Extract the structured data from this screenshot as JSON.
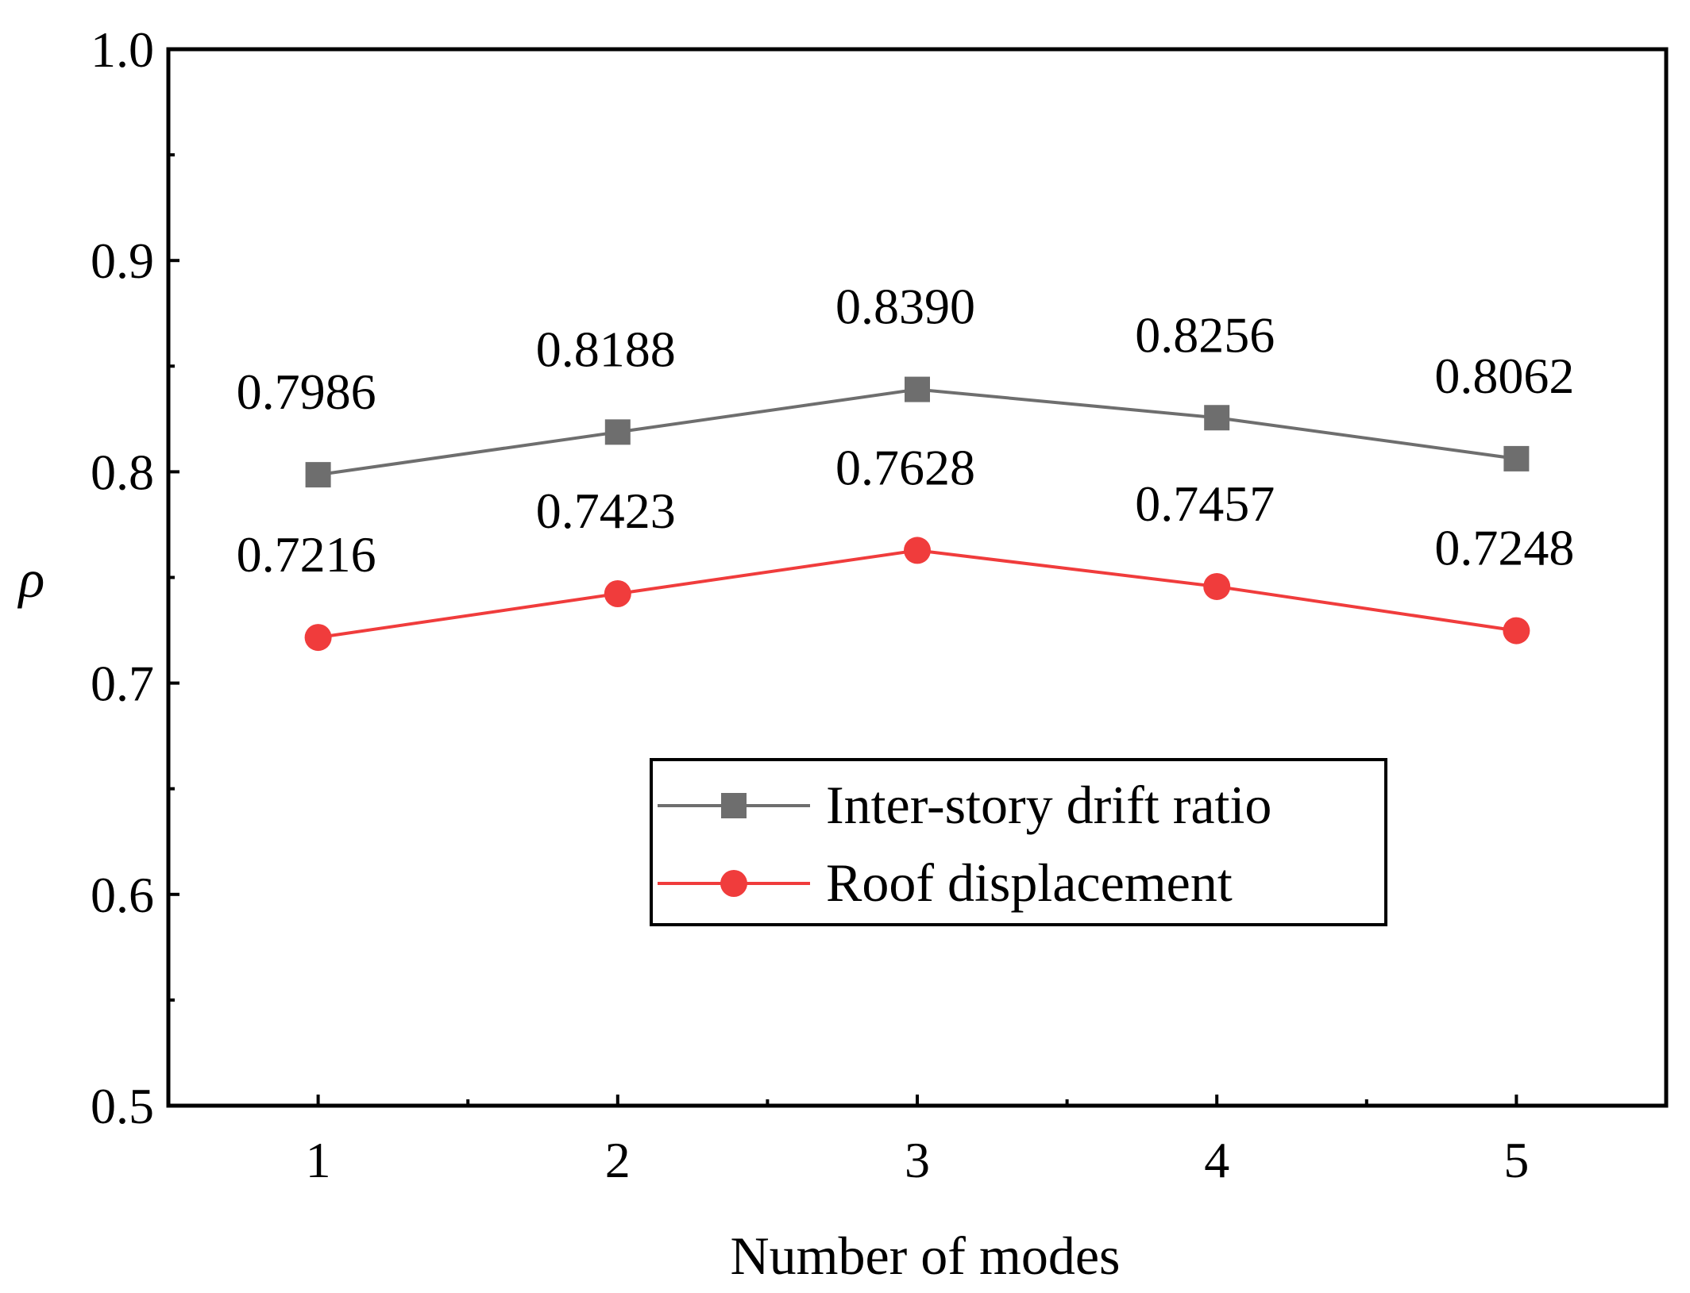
{
  "chart_data": {
    "type": "line",
    "categories": [
      "1",
      "2",
      "3",
      "4",
      "5"
    ],
    "x": [
      1,
      2,
      3,
      4,
      5
    ],
    "xlabel": "Number of modes",
    "ylabel": "ρ",
    "xlim": [
      0.5,
      5.5
    ],
    "ylim": [
      0.5,
      1.0
    ],
    "yticks": [
      "0.5",
      "0.6",
      "0.7",
      "0.8",
      "0.9",
      "1.0"
    ],
    "grid": false,
    "legend_position": "lower-right (inside)",
    "series": [
      {
        "name": "Inter-story drift ratio",
        "marker": "square",
        "color": "#6e6e6e",
        "values": [
          0.7986,
          0.8188,
          0.839,
          0.8256,
          0.8062
        ],
        "labels": [
          "0.7986",
          "0.8188",
          "0.8390",
          "0.8256",
          "0.8062"
        ]
      },
      {
        "name": "Roof displacement",
        "marker": "circle",
        "color": "#f03c3c",
        "values": [
          0.7216,
          0.7423,
          0.7628,
          0.7457,
          0.7248
        ],
        "labels": [
          "0.7216",
          "0.7423",
          "0.7628",
          "0.7457",
          "0.7248"
        ]
      }
    ]
  }
}
